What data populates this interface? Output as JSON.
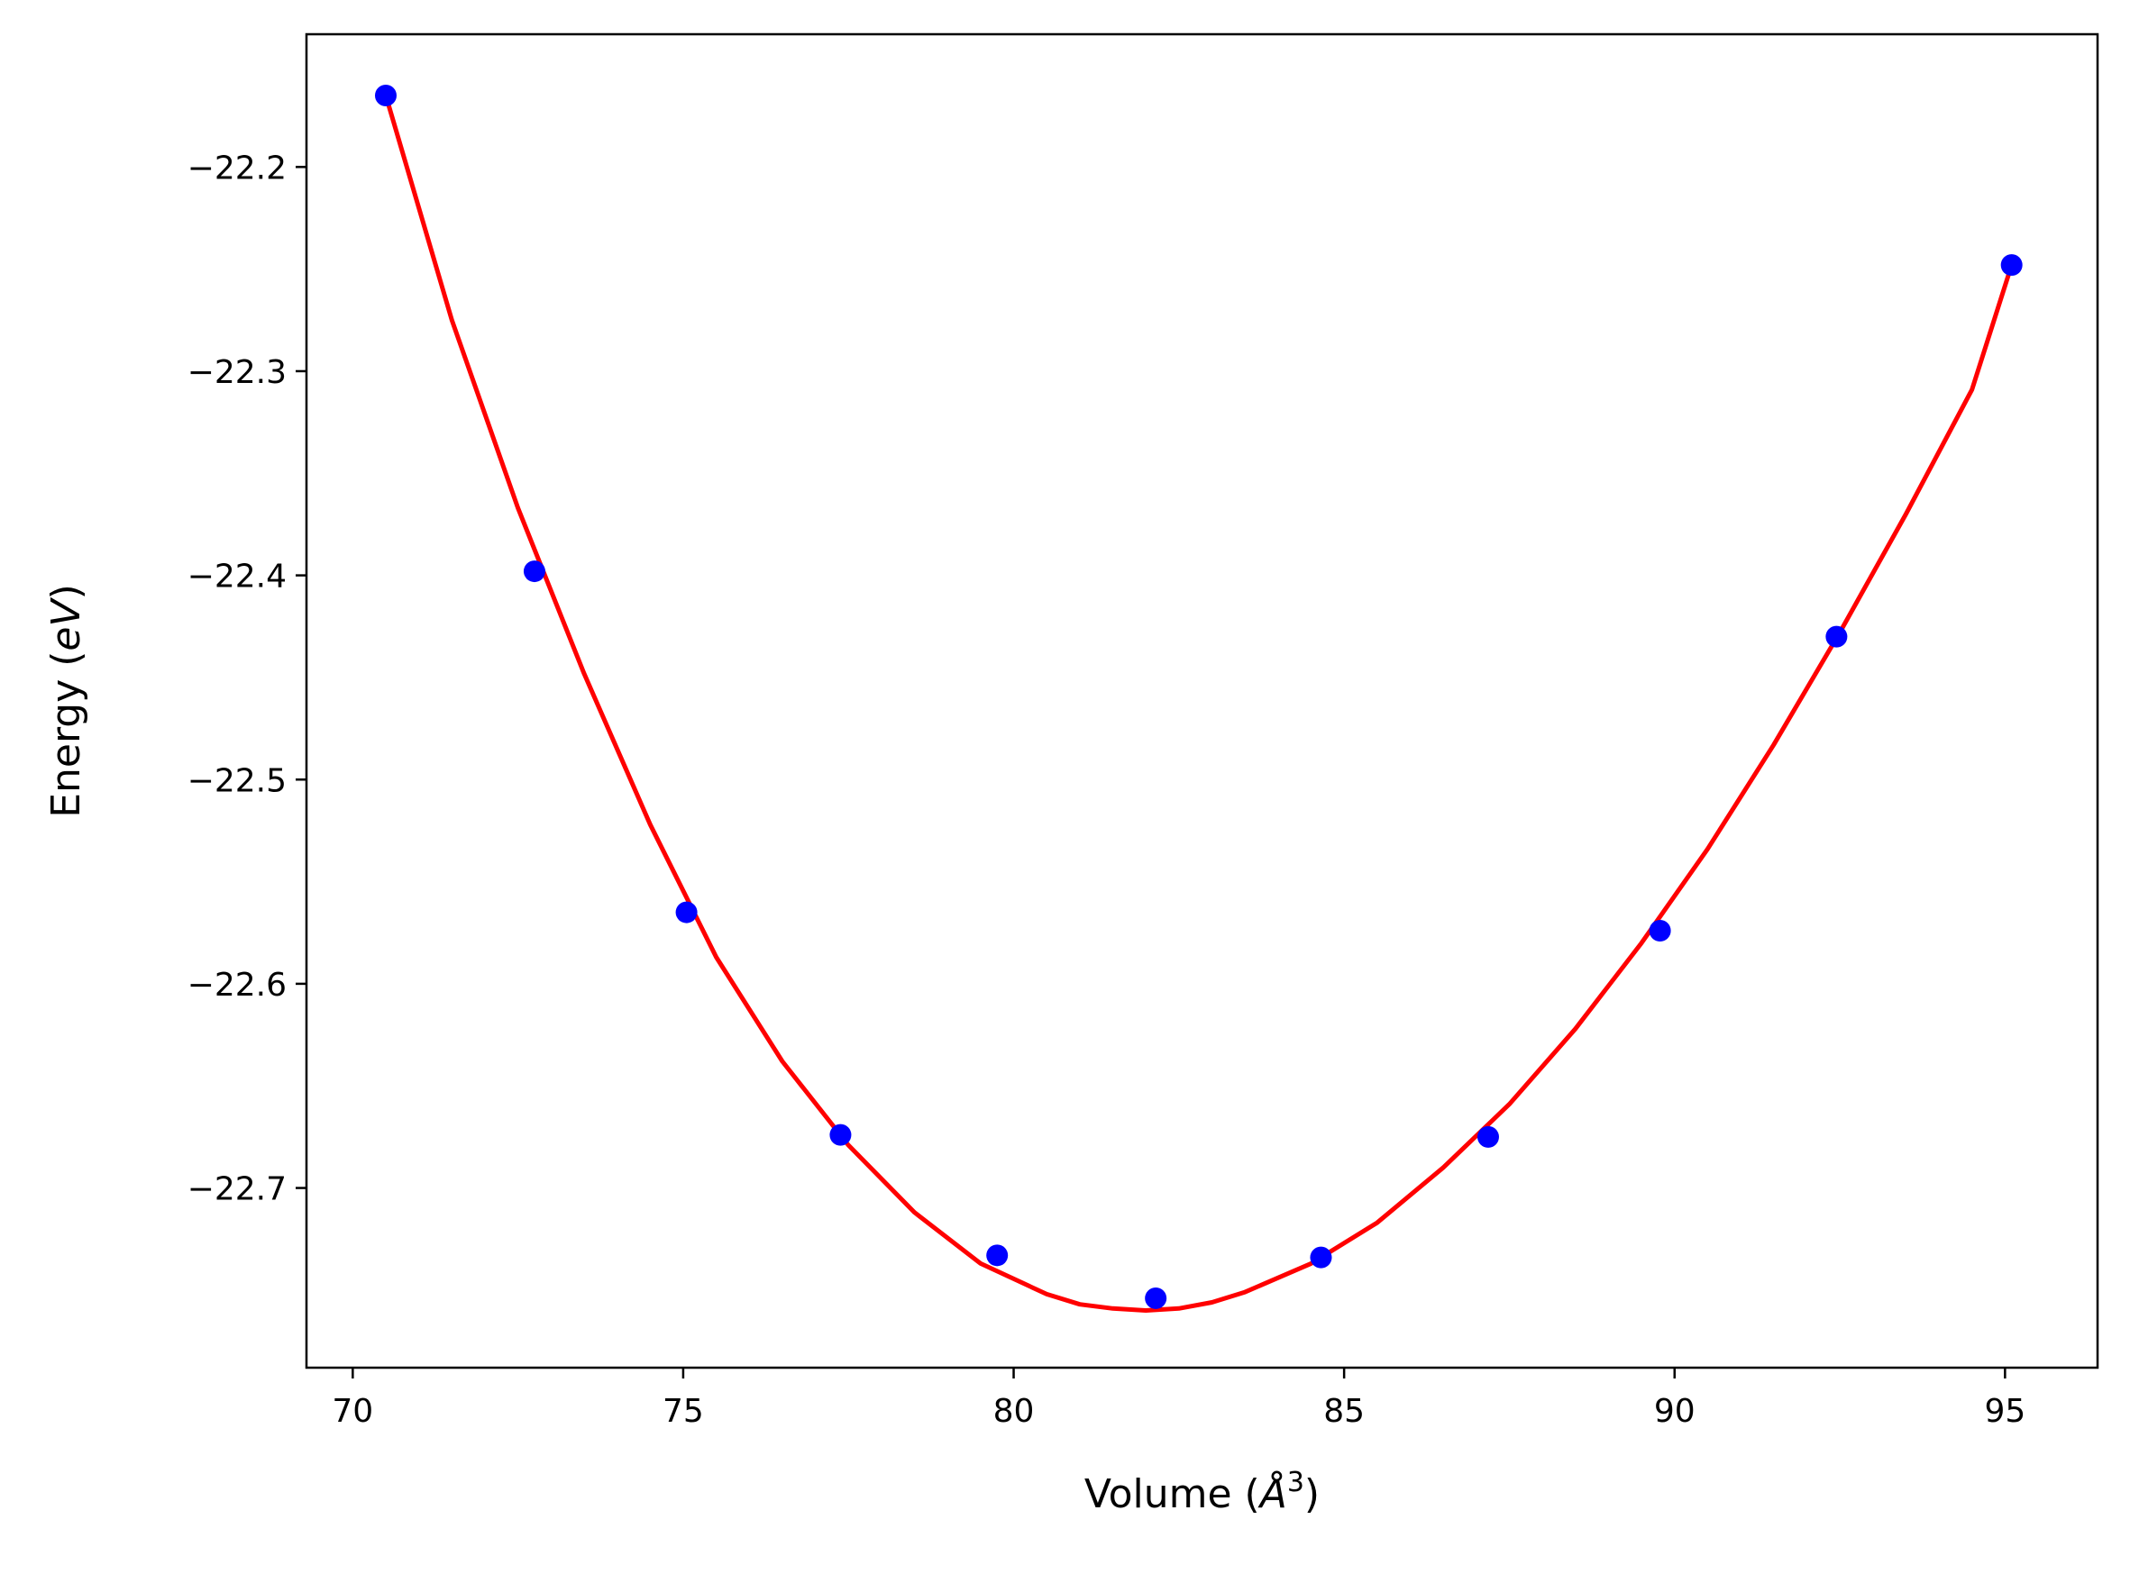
{
  "chart_data": {
    "type": "scatter",
    "xlabel": "Volume ($\\AA^3$)",
    "xlabel_main": "Volume (",
    "xlabel_symbol": "Å",
    "xlabel_sup": "3",
    "xlabel_close": ")",
    "ylabel": "Energy ($eV$)",
    "ylabel_main": "Energy (",
    "ylabel_unit": "eV",
    "ylabel_close": ")",
    "xlim": [
      69.3,
      96.4
    ],
    "ylim": [
      -22.788,
      -22.135
    ],
    "x_ticks": [
      70,
      75,
      80,
      85,
      90,
      95
    ],
    "x_tick_labels": [
      "70",
      "75",
      "80",
      "85",
      "90",
      "95"
    ],
    "y_ticks": [
      -22.2,
      -22.3,
      -22.4,
      -22.5,
      -22.6,
      -22.7
    ],
    "y_tick_labels": [
      "−22.2",
      "−22.3",
      "−22.4",
      "−22.5",
      "−22.6",
      "−22.7"
    ],
    "grid": false,
    "series": [
      {
        "kind": "points",
        "color": "#0000ff",
        "x": [
          70.5,
          72.75,
          75.05,
          77.38,
          79.75,
          82.15,
          84.65,
          87.18,
          89.78,
          92.45,
          95.1
        ],
        "y": [
          -22.165,
          -22.398,
          -22.565,
          -22.674,
          -22.733,
          -22.754,
          -22.734,
          -22.675,
          -22.574,
          -22.43,
          -22.248
        ]
      },
      {
        "kind": "fit-curve",
        "color": "#ff0000",
        "x": [
          70.5,
          71.5,
          72.5,
          73.5,
          74.5,
          75.5,
          76.5,
          77.5,
          78.5,
          79.5,
          80.5,
          81.0,
          81.5,
          82.0,
          82.5,
          83.0,
          83.5,
          84.5,
          85.5,
          86.5,
          87.5,
          88.5,
          89.5,
          90.5,
          91.5,
          92.5,
          93.5,
          94.5,
          95.1
        ],
        "y": [
          -22.165,
          -22.275,
          -22.367,
          -22.448,
          -22.522,
          -22.587,
          -22.638,
          -22.679,
          -22.712,
          -22.737,
          -22.752,
          -22.757,
          -22.759,
          -22.76,
          -22.759,
          -22.756,
          -22.751,
          -22.737,
          -22.717,
          -22.69,
          -22.659,
          -22.622,
          -22.58,
          -22.534,
          -22.483,
          -22.428,
          -22.37,
          -22.309,
          -22.248
        ]
      }
    ]
  }
}
